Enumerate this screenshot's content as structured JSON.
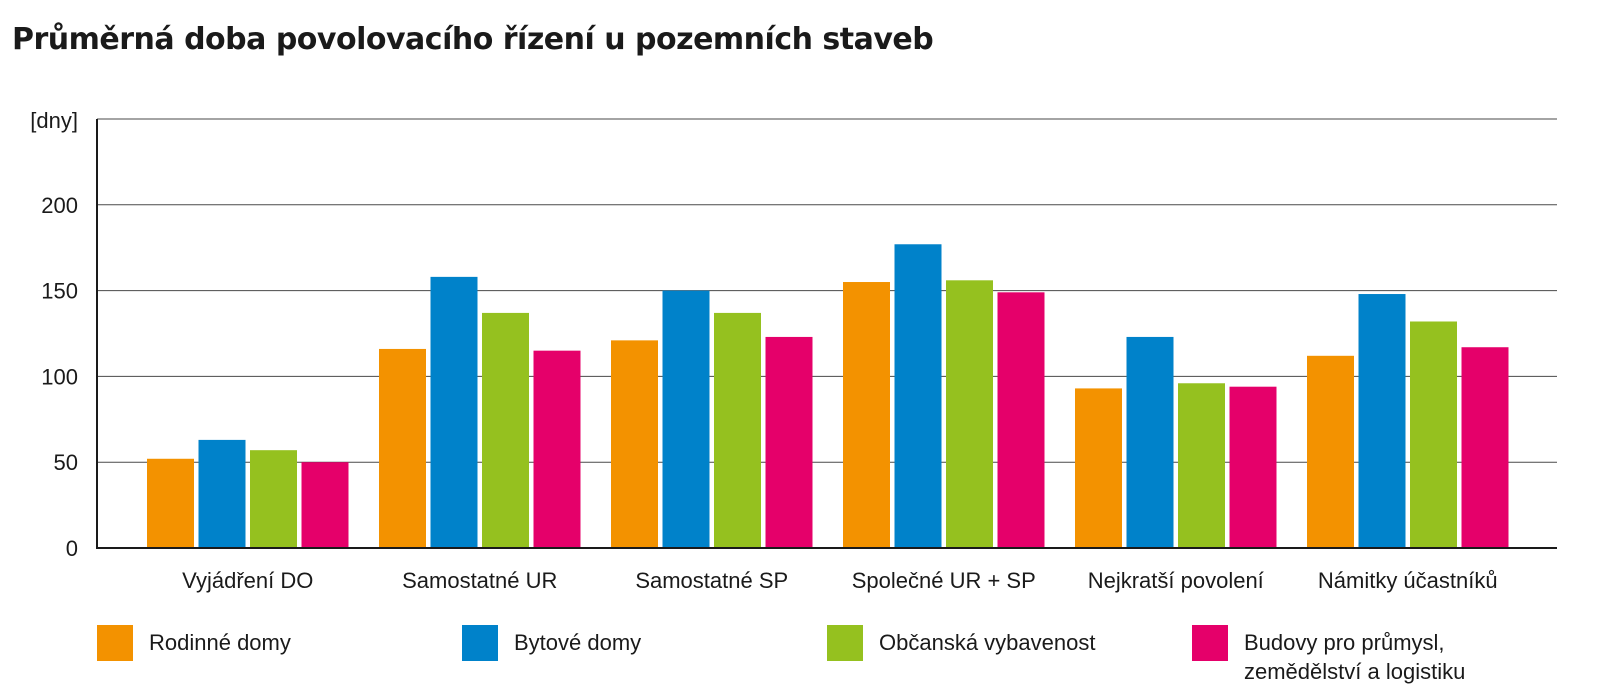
{
  "chart_data": {
    "type": "bar",
    "title": "Průměrná doba povolovacího řízení u pozemních staveb",
    "ylabel": "[dny]",
    "xlabel": "",
    "ylim": [
      0,
      250
    ],
    "yticks": [
      0,
      50,
      100,
      150,
      200
    ],
    "grid": true,
    "legend_position": "bottom",
    "categories": [
      "Vyjádření DO",
      "Samostatné UR",
      "Samostatné SP",
      "Společné UR + SP",
      "Nejkratší povolení",
      "Námitky účastníků"
    ],
    "series": [
      {
        "name": "Rodinné domy",
        "color": "#F39200",
        "values": [
          52,
          116,
          121,
          155,
          93,
          112
        ]
      },
      {
        "name": "Bytové domy",
        "color": "#0082CA",
        "values": [
          63,
          158,
          150,
          177,
          123,
          148
        ]
      },
      {
        "name": "Občanská vybavenost",
        "color": "#95C11F",
        "values": [
          57,
          137,
          137,
          156,
          96,
          132
        ]
      },
      {
        "name": "Budovy pro průmysl, zemědělství a logistiku",
        "color": "#E5006A",
        "values": [
          50,
          115,
          123,
          149,
          94,
          117
        ]
      }
    ]
  }
}
